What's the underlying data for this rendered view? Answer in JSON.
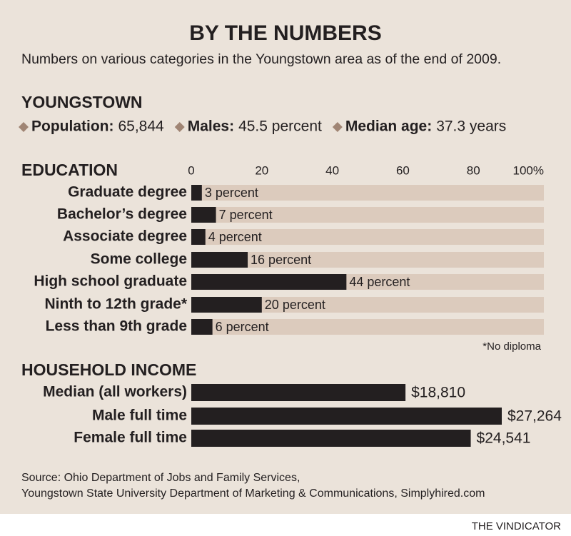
{
  "title": "BY THE NUMBERS",
  "subtitle": "Numbers on various categories in the Youngstown area as of the end of 2009.",
  "youngstown": {
    "heading": "YOUNGSTOWN",
    "stats": [
      {
        "label": "Population:",
        "value": "65,844"
      },
      {
        "label": "Males:",
        "value": "45.5 percent"
      },
      {
        "label": "Median age:",
        "value": "37.3 years"
      }
    ]
  },
  "chart_data": [
    {
      "type": "bar",
      "title": "EDUCATION",
      "categories": [
        "Graduate degree",
        "Bachelor’s degree",
        "Associate degree",
        "Some college",
        "High school graduate",
        "Ninth to 12th grade*",
        "Less than 9th grade"
      ],
      "values": [
        3,
        7,
        4,
        16,
        44,
        20,
        6
      ],
      "value_labels": [
        "3 percent",
        "7 percent",
        "4 percent",
        "16 percent",
        "44 percent",
        "20 percent",
        "6 percent"
      ],
      "xlim": [
        0,
        100
      ],
      "xticks": [
        0,
        20,
        40,
        60,
        80,
        {
          "value": 100,
          "label": "100%"
        }
      ],
      "color": "#231f20",
      "track_color": "#dccbbd",
      "footnote": "*No diploma"
    },
    {
      "type": "bar",
      "title": "HOUSEHOLD INCOME",
      "categories": [
        "Median (all workers)",
        "Male full time",
        "Female full time"
      ],
      "values": [
        18810,
        27264,
        24541
      ],
      "value_labels": [
        "$18,810",
        "$27,264",
        "$24,541"
      ],
      "color": "#231f20"
    }
  ],
  "source": [
    "Source: Ohio Department of Jobs and Family Services,",
    "Youngstown State University Department of Marketing & Communications, Simplyhired.com"
  ],
  "credit": "THE VINDICATOR"
}
